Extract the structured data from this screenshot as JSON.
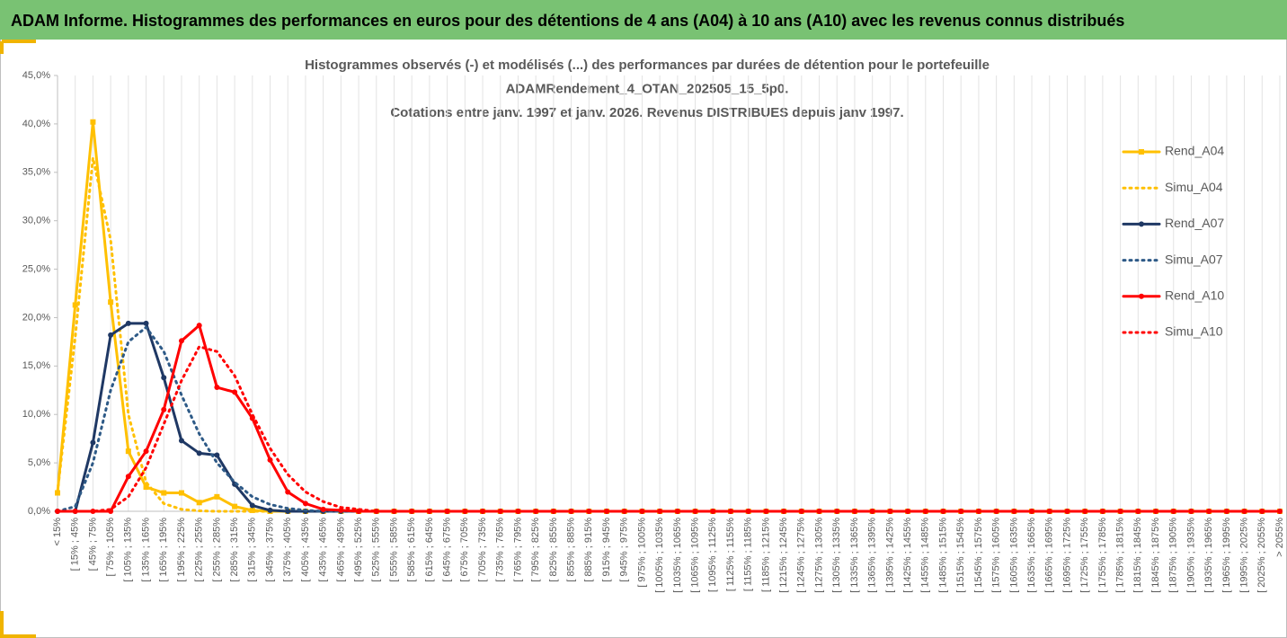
{
  "header": {
    "title": "ADAM Informe. Histogrammes des performances en euros pour des détentions de 4 ans (A04) à 10 ans (A10) avec les revenus connus distribués"
  },
  "chart_data": {
    "type": "line",
    "title": [
      "Histogrammes observés (-) et modélisés (...) des performances par durées de détention pour le portefeuille",
      "ADAMRendement_4_OTAN_202505_15_5p0.",
      "Cotations entre janv. 1997 et janv. 2026. Revenus DISTRIBUES depuis janv 1997."
    ],
    "categories": [
      "< 15%",
      "[ 15% ; 45%",
      "[ 45% ; 75%",
      "[ 75% ; 105%",
      "[ 105% ; 135%",
      "[ 135% ; 165%",
      "[ 165% ; 195%",
      "[ 195% ; 225%",
      "[ 225% ; 255%",
      "[ 255% ; 285%",
      "[ 285% ; 315%",
      "[ 315% ; 345%",
      "[ 345% ; 375%",
      "[ 375% ; 405%",
      "[ 405% ; 435%",
      "[ 435% ; 465%",
      "[ 465% ; 495%",
      "[ 495% ; 525%",
      "[ 525% ; 555%",
      "[ 555% ; 585%",
      "[ 585% ; 615%",
      "[ 615% ; 645%",
      "[ 645% ; 675%",
      "[ 675% ; 705%",
      "[ 705% ; 735%",
      "[ 735% ; 765%",
      "[ 765% ; 795%",
      "[ 795% ; 825%",
      "[ 825% ; 855%",
      "[ 855% ; 885%",
      "[ 885% ; 915%",
      "[ 915% ; 945%",
      "[ 945% ; 975%",
      "[ 975% ; 1005%",
      "[ 1005% ; 1035%",
      "[ 1035% ; 1065%",
      "[ 1065% ; 1095%",
      "[ 1095% ; 1125%",
      "[ 1125% ; 1155%",
      "[ 1155% ; 1185%",
      "[ 1185% ; 1215%",
      "[ 1215% ; 1245%",
      "[ 1245% ; 1275%",
      "[ 1275% ; 1305%",
      "[ 1305% ; 1335%",
      "[ 1335% ; 1365%",
      "[ 1365% ; 1395%",
      "[ 1395% ; 1425%",
      "[ 1425% ; 1455%",
      "[ 1455% ; 1485%",
      "[ 1485% ; 1515%",
      "[ 1515% ; 1545%",
      "[ 1545% ; 1575%",
      "[ 1575% ; 1605%",
      "[ 1605% ; 1635%",
      "[ 1635% ; 1665%",
      "[ 1665% ; 1695%",
      "[ 1695% ; 1725%",
      "[ 1725% ; 1755%",
      "[ 1755% ; 1785%",
      "[ 1785% ; 1815%",
      "[ 1815% ; 1845%",
      "[ 1845% ; 1875%",
      "[ 1875% ; 1905%",
      "[ 1905% ; 1935%",
      "[ 1935% ; 1965%",
      "[ 1965% ; 1995%",
      "[ 1995% ; 2025%",
      "[ 2025% ; 2055%",
      "> 2055%"
    ],
    "series": [
      {
        "name": "Rend_A04",
        "color": "#ffc000",
        "style": "solid",
        "marker": "square",
        "values": [
          1.9,
          21.3,
          40.2,
          21.6,
          6.2,
          2.5,
          1.9,
          1.9,
          0.9,
          1.5,
          0.5,
          0.1,
          0,
          0,
          0,
          0,
          0,
          0,
          0,
          0,
          0,
          0,
          0,
          0,
          0,
          0,
          0,
          0,
          0,
          0,
          0,
          0,
          0,
          0,
          0,
          0,
          0,
          0,
          0,
          0,
          0,
          0,
          0,
          0,
          0,
          0,
          0,
          0,
          0,
          0,
          0,
          0,
          0,
          0,
          0,
          0,
          0,
          0,
          0,
          0,
          0,
          0,
          0,
          0,
          0,
          0,
          0,
          0,
          0,
          0
        ]
      },
      {
        "name": "Simu_A04",
        "color": "#ffc000",
        "style": "dotted",
        "values": [
          2,
          18,
          36.5,
          28,
          10,
          3,
          0.8,
          0.2,
          0.05,
          0,
          0,
          0,
          0,
          0,
          0,
          0,
          0,
          0,
          0,
          0,
          0,
          0,
          0,
          0,
          0,
          0,
          0,
          0,
          0,
          0,
          0,
          0,
          0,
          0,
          0,
          0,
          0,
          0,
          0,
          0,
          0,
          0,
          0,
          0,
          0,
          0,
          0,
          0,
          0,
          0,
          0,
          0,
          0,
          0,
          0,
          0,
          0,
          0,
          0,
          0,
          0,
          0,
          0,
          0,
          0,
          0,
          0,
          0,
          0,
          0
        ]
      },
      {
        "name": "Rend_A07",
        "color": "#1f3864",
        "style": "solid",
        "marker": "circle",
        "values": [
          0,
          0,
          7.1,
          18.2,
          19.4,
          19.4,
          13.8,
          7.3,
          6.0,
          5.8,
          2.8,
          0.6,
          0.1,
          0,
          0,
          0,
          0,
          0,
          0,
          0,
          0,
          0,
          0,
          0,
          0,
          0,
          0,
          0,
          0,
          0,
          0,
          0,
          0,
          0,
          0,
          0,
          0,
          0,
          0,
          0,
          0,
          0,
          0,
          0,
          0,
          0,
          0,
          0,
          0,
          0,
          0,
          0,
          0,
          0,
          0,
          0,
          0,
          0,
          0,
          0,
          0,
          0,
          0,
          0,
          0,
          0,
          0,
          0,
          0,
          0
        ]
      },
      {
        "name": "Simu_A07",
        "color": "#2e5a87",
        "style": "dotted",
        "values": [
          0,
          0.5,
          5,
          12.5,
          17.5,
          19,
          16.5,
          12,
          8,
          5,
          3,
          1.5,
          0.7,
          0.3,
          0.1,
          0,
          0,
          0,
          0,
          0,
          0,
          0,
          0,
          0,
          0,
          0,
          0,
          0,
          0,
          0,
          0,
          0,
          0,
          0,
          0,
          0,
          0,
          0,
          0,
          0,
          0,
          0,
          0,
          0,
          0,
          0,
          0,
          0,
          0,
          0,
          0,
          0,
          0,
          0,
          0,
          0,
          0,
          0,
          0,
          0,
          0,
          0,
          0,
          0,
          0,
          0,
          0,
          0,
          0,
          0
        ]
      },
      {
        "name": "Rend_A10",
        "color": "#ff0000",
        "style": "solid",
        "marker": "circle",
        "values": [
          0,
          0,
          0,
          0,
          3.6,
          6.2,
          10.5,
          17.6,
          19.2,
          12.8,
          12.3,
          9.6,
          5.3,
          2.0,
          0.8,
          0.2,
          0.1,
          0,
          0,
          0,
          0,
          0,
          0,
          0,
          0,
          0,
          0,
          0,
          0,
          0,
          0,
          0,
          0,
          0,
          0,
          0,
          0,
          0,
          0,
          0,
          0,
          0,
          0,
          0,
          0,
          0,
          0,
          0,
          0,
          0,
          0,
          0,
          0,
          0,
          0,
          0,
          0,
          0,
          0,
          0,
          0,
          0,
          0,
          0,
          0,
          0,
          0,
          0,
          0,
          0
        ]
      },
      {
        "name": "Simu_A10",
        "color": "#ff0000",
        "style": "dotted",
        "values": [
          0,
          0,
          0,
          0.2,
          1.5,
          4.5,
          9,
          13.5,
          17,
          16.5,
          14,
          10,
          6.5,
          3.8,
          2,
          1,
          0.4,
          0.2,
          0,
          0,
          0,
          0,
          0,
          0,
          0,
          0,
          0,
          0,
          0,
          0,
          0,
          0,
          0,
          0,
          0,
          0,
          0,
          0,
          0,
          0,
          0,
          0,
          0,
          0,
          0,
          0,
          0,
          0,
          0,
          0,
          0,
          0,
          0,
          0,
          0,
          0,
          0,
          0,
          0,
          0,
          0,
          0,
          0,
          0,
          0,
          0,
          0,
          0,
          0,
          0
        ]
      }
    ],
    "ylim": [
      0,
      45
    ],
    "yticks": [
      {
        "value": 0,
        "label": "0,0%"
      },
      {
        "value": 5,
        "label": "5,0%"
      },
      {
        "value": 10,
        "label": "10,0%"
      },
      {
        "value": 15,
        "label": "15,0%"
      },
      {
        "value": 20,
        "label": "20,0%"
      },
      {
        "value": 25,
        "label": "25,0%"
      },
      {
        "value": 30,
        "label": "30,0%"
      },
      {
        "value": 35,
        "label": "35,0%"
      },
      {
        "value": 40,
        "label": "40,0%"
      },
      {
        "value": 45,
        "label": "45,0%"
      }
    ],
    "legend": "right"
  }
}
